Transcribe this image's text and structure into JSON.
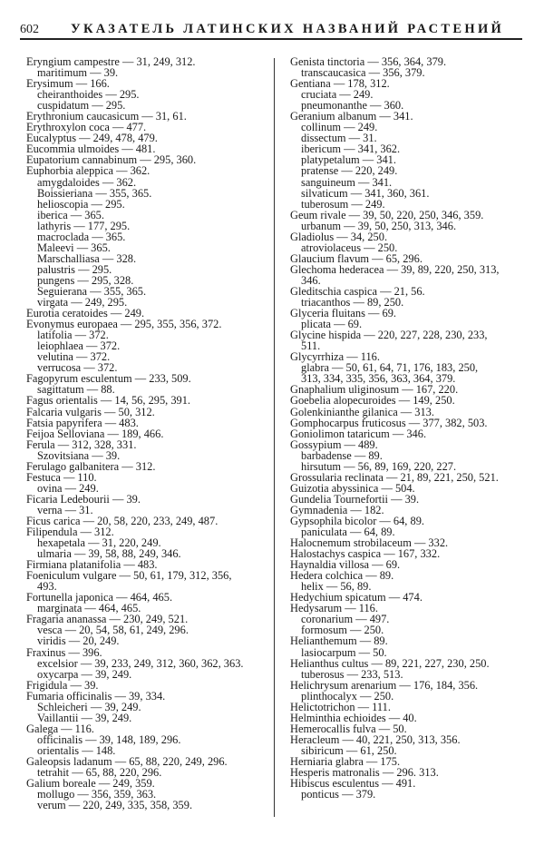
{
  "header": {
    "page_number": "602",
    "title": "УКАЗАТЕЛЬ ЛАТИНСКИХ НАЗВАНИЙ РАСТЕНИЙ"
  },
  "columns": [
    [
      {
        "t": "Eryngium  campestre — 31,  249,  312.",
        "s": 0
      },
      {
        "t": "maritimum — 39.",
        "s": 1
      },
      {
        "t": "Erysimum — 166.",
        "s": 0
      },
      {
        "t": "cheiranthoides — 295.",
        "s": 1
      },
      {
        "t": "cuspidatum — 295.",
        "s": 1
      },
      {
        "t": "Erythronium  caucasicum — 31,  61.",
        "s": 0
      },
      {
        "t": "Erythroxylon  coca — 477.",
        "s": 0
      },
      {
        "t": "Eucalyptus — 249,  478,  479.",
        "s": 0
      },
      {
        "t": "Eucommia  ulmoides — 481.",
        "s": 0
      },
      {
        "t": "Eupatorium  cannabinum — 295,  360.",
        "s": 0
      },
      {
        "t": "Euphorbia  aleppica — 362.",
        "s": 0
      },
      {
        "t": "amygdaloides — 362.",
        "s": 1
      },
      {
        "t": "Boissieriana — 355,  365.",
        "s": 1
      },
      {
        "t": "helioscopia — 295.",
        "s": 1
      },
      {
        "t": "iberica — 365.",
        "s": 1
      },
      {
        "t": "lathyris — 177,  295.",
        "s": 1
      },
      {
        "t": "macroclada — 365.",
        "s": 1
      },
      {
        "t": "Maleevi — 365.",
        "s": 1
      },
      {
        "t": "Marschalliasa — 328.",
        "s": 1
      },
      {
        "t": "palustris — 295.",
        "s": 1
      },
      {
        "t": "pungens — 295,  328.",
        "s": 1
      },
      {
        "t": "Seguierana — 355,  365.",
        "s": 1
      },
      {
        "t": "virgata — 249,  295.",
        "s": 1
      },
      {
        "t": "Eurotia  ceratoides — 249.",
        "s": 0
      },
      {
        "t": "Evonymus  europaea — 295,  355,  356,  372.",
        "s": 0
      },
      {
        "t": "latifolia — 372.",
        "s": 1
      },
      {
        "t": "leiophlaea — 372.",
        "s": 1
      },
      {
        "t": "velutina — 372.",
        "s": 1
      },
      {
        "t": "verrucosa — 372.",
        "s": 1
      },
      {
        "t": "Fagopyrum  esculentum — 233,  509.",
        "s": 0
      },
      {
        "t": "sagittatum — 88.",
        "s": 1
      },
      {
        "t": "Fagus  orientalis — 14,  56,  295,  391.",
        "s": 0
      },
      {
        "t": "Falcaria  vulgaris — 50,  312.",
        "s": 0
      },
      {
        "t": "Fatsia  papyrifera — 483.",
        "s": 0
      },
      {
        "t": "Feijoa  Selloviana — 189,  466.",
        "s": 0
      },
      {
        "t": "Ferula — 312,  328,  331.",
        "s": 0
      },
      {
        "t": "Szovitsiana — 39.",
        "s": 1
      },
      {
        "t": "Ferulago  galbanitera — 312.",
        "s": 0
      },
      {
        "t": "Festuca — 110.",
        "s": 0
      },
      {
        "t": "ovina — 249.",
        "s": 1
      },
      {
        "t": "Ficaria  Ledebourii — 39.",
        "s": 0
      },
      {
        "t": "verna —  31.",
        "s": 1
      },
      {
        "t": "Ficus  carica — 20,  58,  220,  233,  249,  487.",
        "s": 0
      },
      {
        "t": "Filipendula — 312.",
        "s": 0
      },
      {
        "t": "hexapetala — 31,  220,  249.",
        "s": 1
      },
      {
        "t": "ulmaria — 39,  58,  88,  249,  346.",
        "s": 1
      },
      {
        "t": "Firmiana  platanifolia — 483.",
        "s": 0
      },
      {
        "t": "Foeniculum  vulgare — 50,  61,  179,  312,  356,",
        "s": 0
      },
      {
        "t": "493.",
        "s": 1
      },
      {
        "t": "Fortunella  japonica — 464,  465.",
        "s": 0
      },
      {
        "t": "marginata — 464,  465.",
        "s": 1
      },
      {
        "t": "Fragaria  ananassa — 230,  249,  521.",
        "s": 0
      },
      {
        "t": "vesca — 20,  54,  58,  61,  249,  296.",
        "s": 1
      },
      {
        "t": "viridis — 20,  249.",
        "s": 1
      },
      {
        "t": "Fraxinus — 396.",
        "s": 0
      },
      {
        "t": "excelsior — 39, 233, 249,   312,   360, 362, 363.",
        "s": 1
      },
      {
        "t": "oxycarpa — 39,  249.",
        "s": 1
      },
      {
        "t": "Frigidula — 39.",
        "s": 0
      },
      {
        "t": "Fumaria  officinalis — 39,  334.",
        "s": 0
      },
      {
        "t": "Schleicheri — 39,  249.",
        "s": 1
      },
      {
        "t": "Vaillantii — 39,  249.",
        "s": 1
      },
      {
        "t": "Galega — 116.",
        "s": 0
      },
      {
        "t": "officinalis — 39,  148,  189,  296.",
        "s": 1
      },
      {
        "t": "orientalis — 148.",
        "s": 1
      },
      {
        "t": "Galeopsis  ladanum — 65,  88,  220,  249,  296.",
        "s": 0
      },
      {
        "t": "tetrahit — 65,  88,  220,  296.",
        "s": 1
      },
      {
        "t": "Galium  boreale — 249,  359.",
        "s": 0
      },
      {
        "t": "mollugo — 356,  359,  363.",
        "s": 1
      },
      {
        "t": "verum — 220,  249,  335,  358,  359.",
        "s": 1
      }
    ],
    [
      {
        "t": "Genista  tinctoria — 356,  364,  379.",
        "s": 0
      },
      {
        "t": "transcaucasica — 356,  379.",
        "s": 1
      },
      {
        "t": "Gentiana — 178,  312.",
        "s": 0
      },
      {
        "t": "cruciata — 249.",
        "s": 1
      },
      {
        "t": "pneumonanthe — 360.",
        "s": 1
      },
      {
        "t": "Geranium  albanum — 341.",
        "s": 0
      },
      {
        "t": "collinum — 249.",
        "s": 1
      },
      {
        "t": "dissectum — 31.",
        "s": 1
      },
      {
        "t": "ibericum — 341,  362.",
        "s": 1
      },
      {
        "t": "platypetalum — 341.",
        "s": 1
      },
      {
        "t": "pratense — 220,  249.",
        "s": 1
      },
      {
        "t": "sanguineum — 341.",
        "s": 1
      },
      {
        "t": "silvaticum — 341,  360,  361.",
        "s": 1
      },
      {
        "t": "tuberosum —  249.",
        "s": 1
      },
      {
        "t": "Geum  rivale — 39,  50,  220,  250,  346,  359.",
        "s": 0
      },
      {
        "t": "urbanum — 39,  50,  250,  313,  346.",
        "s": 1
      },
      {
        "t": "Gladiolus — 34,  250.",
        "s": 0
      },
      {
        "t": "atroviolaceus — 250.",
        "s": 1
      },
      {
        "t": "Glaucium  flavum — 65,  296.",
        "s": 0
      },
      {
        "t": "Glechoma  hederacea — 39, 89,  220,  250,  313,",
        "s": 0
      },
      {
        "t": "346.",
        "s": 1
      },
      {
        "t": "Gleditschia  caspica — 21,  56.",
        "s": 0
      },
      {
        "t": "triacanthos — 89,  250.",
        "s": 1
      },
      {
        "t": "Glyceria  fluitans — 69.",
        "s": 0
      },
      {
        "t": "plicata — 69.",
        "s": 1
      },
      {
        "t": "Glycine  hispida — 220,   227,  228,  230,  233,",
        "s": 0
      },
      {
        "t": "511.",
        "s": 1
      },
      {
        "t": "Glycyrrhiza — 116.",
        "s": 0
      },
      {
        "t": "glabra — 50,  61,  64,  71,  176,  183,  250,",
        "s": 1
      },
      {
        "t": "313,  334,  335,  356,  363,  364,  379.",
        "s": 1
      },
      {
        "t": "Gnaphalium  uliginosum — 167,  220.",
        "s": 0
      },
      {
        "t": "Goebelia  alopecuroides — 149,  250.",
        "s": 0
      },
      {
        "t": "Golenkinianthe  gilanica — 313.",
        "s": 0
      },
      {
        "t": "Gomphocarpus  fruticosus — 377,  382,  503.",
        "s": 0
      },
      {
        "t": "Goniolimon  tataricum — 346.",
        "s": 0
      },
      {
        "t": "Gossypium — 489.",
        "s": 0
      },
      {
        "t": "barbadense — 89.",
        "s": 1
      },
      {
        "t": "hirsutum — 56,  89,  169,  220,  227.",
        "s": 1
      },
      {
        "t": "Grossularia  reclinata — 21,  89,  221,  250,  521.",
        "s": 0
      },
      {
        "t": "Guizotia  abyssinica — 504.",
        "s": 0
      },
      {
        "t": "Gundelia  Tournefortii — 39.",
        "s": 0
      },
      {
        "t": "Gymnadenia — 182.",
        "s": 0
      },
      {
        "t": "Gypsophila  bicolor — 64,  89.",
        "s": 0
      },
      {
        "t": "paniculata — 64,  89.",
        "s": 1
      },
      {
        "t": "Halocnemum  strobilaceum — 332.",
        "s": 0
      },
      {
        "t": "Halostachys  caspica — 167,  332.",
        "s": 0
      },
      {
        "t": "Haynaldia  villosa — 69.",
        "s": 0
      },
      {
        "t": "Hedera  colchica — 89.",
        "s": 0
      },
      {
        "t": "helix — 56,  89.",
        "s": 1
      },
      {
        "t": "Hedychium  spicatum — 474.",
        "s": 0
      },
      {
        "t": "Hedysarum — 116.",
        "s": 0
      },
      {
        "t": "coronarium — 497.",
        "s": 1
      },
      {
        "t": "formosum — 250.",
        "s": 1
      },
      {
        "t": "Helianthemum — 89.",
        "s": 0
      },
      {
        "t": "lasiocarpum — 50.",
        "s": 1
      },
      {
        "t": "Helianthus  cultus — 89,  221,  227,  230,  250.",
        "s": 0
      },
      {
        "t": "tuberosus — 233,  513.",
        "s": 1
      },
      {
        "t": "Helichrysum  arenarium — 176,  184,  356.",
        "s": 0
      },
      {
        "t": "plinthocalyx — 250.",
        "s": 1
      },
      {
        "t": "Helictotrichon — 111.",
        "s": 0
      },
      {
        "t": "Helminthia  echioides — 40.",
        "s": 0
      },
      {
        "t": "Hemerocallis  fulva — 50.",
        "s": 0
      },
      {
        "t": "Heracleum — 40,  221,  250,  313,  356.",
        "s": 0
      },
      {
        "t": "sibiricum — 61,  250.",
        "s": 1
      },
      {
        "t": "Herniaria  glabra — 175.",
        "s": 0
      },
      {
        "t": "Hesperis  matronalis — 296.  313.",
        "s": 0
      },
      {
        "t": "Hibiscus  esculentus — 491.",
        "s": 0
      },
      {
        "t": "ponticus — 379.",
        "s": 1
      }
    ]
  ]
}
